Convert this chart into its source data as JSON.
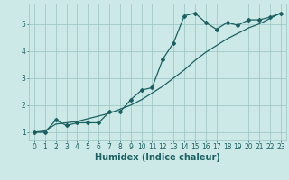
{
  "title": "",
  "xlabel": "Humidex (Indice chaleur)",
  "background_color": "#cce9e8",
  "grid_color": "#a0c8c8",
  "line_color": "#1a6060",
  "x_line": [
    0,
    1,
    2,
    3,
    4,
    5,
    6,
    7,
    8,
    9,
    10,
    11,
    12,
    13,
    14,
    15,
    16,
    17,
    18,
    19,
    20,
    21,
    22,
    23
  ],
  "y_curve": [
    1.0,
    1.0,
    1.45,
    1.25,
    1.35,
    1.35,
    1.35,
    1.75,
    1.75,
    2.2,
    2.55,
    2.65,
    3.7,
    4.3,
    5.3,
    5.4,
    5.05,
    4.8,
    5.05,
    4.95,
    5.15,
    5.15,
    5.25,
    5.4
  ],
  "y_linear": [
    1.0,
    1.05,
    1.3,
    1.35,
    1.4,
    1.5,
    1.6,
    1.7,
    1.85,
    2.0,
    2.2,
    2.45,
    2.7,
    3.0,
    3.3,
    3.65,
    3.95,
    4.2,
    4.45,
    4.65,
    4.85,
    5.0,
    5.2,
    5.4
  ],
  "ylim": [
    0.7,
    5.75
  ],
  "xlim": [
    -0.5,
    23.5
  ],
  "yticks": [
    1,
    2,
    3,
    4,
    5
  ],
  "xticks": [
    0,
    1,
    2,
    3,
    4,
    5,
    6,
    7,
    8,
    9,
    10,
    11,
    12,
    13,
    14,
    15,
    16,
    17,
    18,
    19,
    20,
    21,
    22,
    23
  ],
  "tick_fontsize": 5.5,
  "xlabel_fontsize": 7.0,
  "marker": "D",
  "markersize": 2.0,
  "linewidth": 0.9
}
